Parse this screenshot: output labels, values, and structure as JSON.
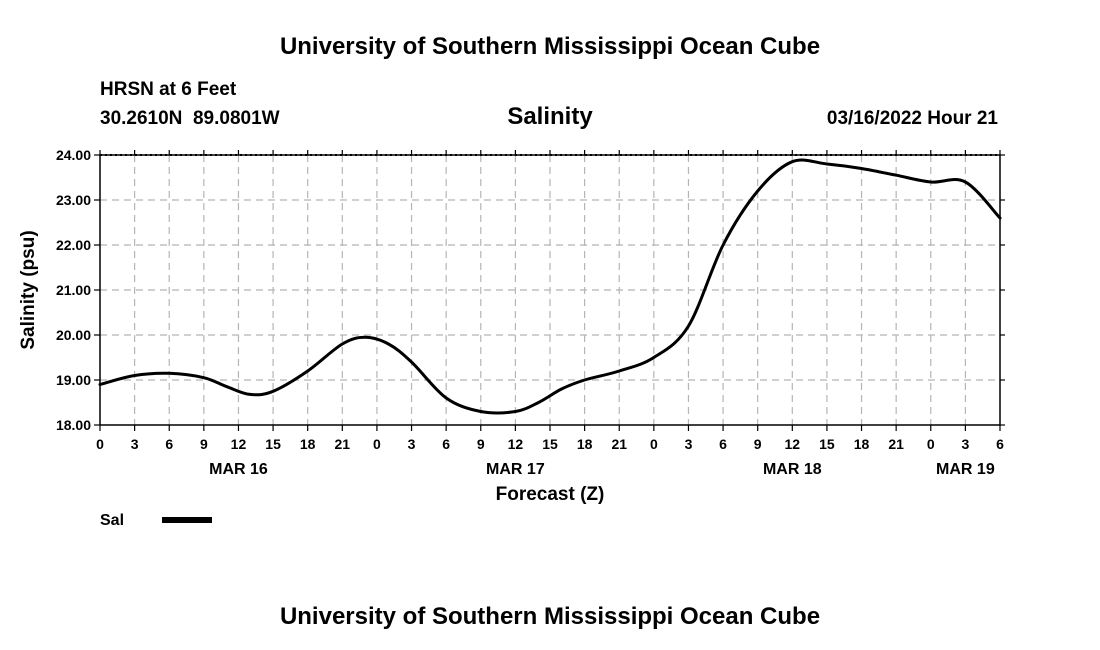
{
  "header": {
    "title": "University of Southern Mississippi Ocean Cube",
    "station": "HRSN at 6 Feet",
    "coords": "30.2610N  89.0801W",
    "chart_title": "Salinity",
    "run_time": "03/16/2022 Hour 21"
  },
  "footer": {
    "title": "University of Southern Mississippi Ocean Cube"
  },
  "legend": {
    "label": "Sal",
    "color": "#000000"
  },
  "chart_data": {
    "type": "line",
    "title": "Salinity",
    "xlabel": "Forecast (Z)",
    "ylabel": "Salinity (psu)",
    "ylim": [
      18,
      24
    ],
    "xlim": [
      0,
      78
    ],
    "y_ticks": [
      "18.00",
      "19.00",
      "20.00",
      "21.00",
      "22.00",
      "23.00",
      "24.00"
    ],
    "x_tick_labels": [
      "0",
      "3",
      "6",
      "9",
      "12",
      "15",
      "18",
      "21",
      "0",
      "3",
      "6",
      "9",
      "12",
      "15",
      "18",
      "21",
      "0",
      "3",
      "6",
      "9",
      "12",
      "15",
      "18",
      "21",
      "0",
      "3",
      "6"
    ],
    "date_labels": [
      {
        "label": "MAR 16",
        "hour": 12
      },
      {
        "label": "MAR 17",
        "hour": 36
      },
      {
        "label": "MAR 18",
        "hour": 60
      },
      {
        "label": "MAR 19",
        "hour": 75
      }
    ],
    "grid": true,
    "series": [
      {
        "name": "Sal",
        "color": "#000000",
        "x": [
          0,
          3,
          6,
          9,
          11,
          13,
          15,
          18,
          21,
          23,
          25,
          27,
          30,
          33,
          36,
          38,
          40,
          42,
          45,
          48,
          51,
          54,
          57,
          60,
          63,
          66,
          69,
          72,
          75,
          78
        ],
        "y": [
          18.9,
          19.1,
          19.15,
          19.05,
          18.85,
          18.68,
          18.75,
          19.2,
          19.8,
          19.95,
          19.8,
          19.4,
          18.6,
          18.3,
          18.3,
          18.5,
          18.8,
          19.0,
          19.2,
          19.5,
          20.2,
          22.0,
          23.2,
          23.85,
          23.8,
          23.7,
          23.55,
          23.4,
          23.4,
          22.6
        ]
      }
    ]
  }
}
